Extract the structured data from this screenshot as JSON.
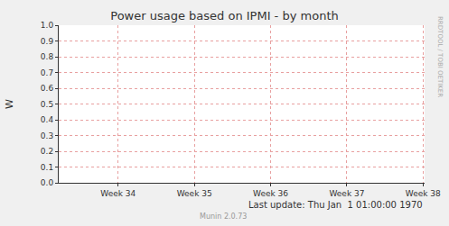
{
  "chart_data": {
    "type": "line",
    "title": "Power usage based on IPMI - by month",
    "y_label": "W",
    "xlim": [
      33.22,
      38.02
    ],
    "xticks": [
      {
        "value": 34,
        "label": "Week 34"
      },
      {
        "value": 35,
        "label": "Week 35"
      },
      {
        "value": 36,
        "label": "Week 36"
      },
      {
        "value": 37,
        "label": "Week 37"
      },
      {
        "value": 38,
        "label": "Week 38"
      }
    ],
    "ylim": [
      0,
      1
    ],
    "yticks": [
      {
        "value": 0,
        "label": "0.0"
      },
      {
        "value": 0.1,
        "label": "0.1"
      },
      {
        "value": 0.2,
        "label": "0.2"
      },
      {
        "value": 0.3,
        "label": "0.3"
      },
      {
        "value": 0.4,
        "label": "0.4"
      },
      {
        "value": 0.5,
        "label": "0.5"
      },
      {
        "value": 0.6,
        "label": "0.6"
      },
      {
        "value": 0.7,
        "label": "0.7"
      },
      {
        "value": 0.8,
        "label": "0.8"
      },
      {
        "value": 0.9,
        "label": "0.9"
      },
      {
        "value": 1,
        "label": "1.0"
      }
    ],
    "grid": true,
    "series": [],
    "annotations": [
      "Last update: Thu Jan  1 01:00:00 1970",
      "Munin 2.0.73"
    ],
    "side_text": "RRDTOOL / TOBI OETIKER"
  }
}
